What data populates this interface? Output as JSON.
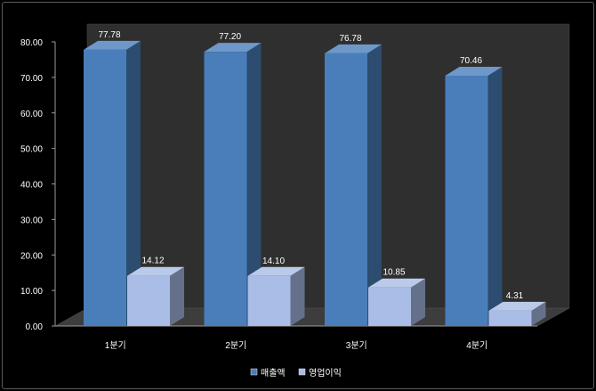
{
  "chart_data": {
    "type": "bar",
    "categories": [
      "1분기",
      "2분기",
      "3분기",
      "4분기"
    ],
    "series": [
      {
        "name": "매출액",
        "values": [
          77.78,
          77.2,
          76.78,
          70.46
        ],
        "color": "#4a7ebb"
      },
      {
        "name": "영업이익",
        "values": [
          14.12,
          14.1,
          10.85,
          4.31
        ],
        "color": "#a9bde6"
      }
    ],
    "data_labels": [
      [
        "77.78",
        "77.20",
        "76.78",
        "70.46"
      ],
      [
        "14.12",
        "14.10",
        "10.85",
        "4.31"
      ]
    ],
    "ylim": [
      0,
      80
    ],
    "yticks": [
      "0.00",
      "10.00",
      "20.00",
      "30.00",
      "40.00",
      "50.00",
      "60.00",
      "70.00",
      "80.00"
    ],
    "legend": {
      "position": "bottom"
    },
    "background": "#000000",
    "backwall_color": "#2f2f2f",
    "floor_color": "#3d3d3d",
    "three_d": true
  }
}
